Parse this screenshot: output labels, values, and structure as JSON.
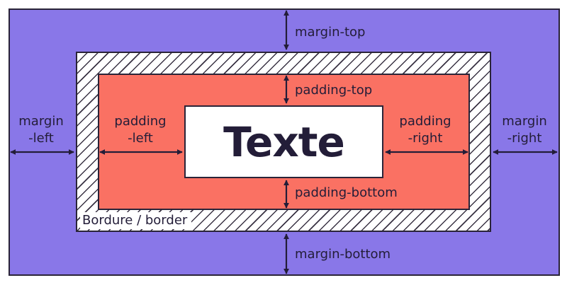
{
  "content_label": "Texte",
  "border_label": "Bordure / border",
  "labels": {
    "margin_top": "margin-top",
    "margin_bottom": "margin-bottom",
    "margin_left_line1": "margin",
    "margin_left_line2": "-left",
    "margin_right_line1": "margin",
    "margin_right_line2": "-right",
    "padding_top": "padding-top",
    "padding_bottom": "padding-bottom",
    "padding_left_line1": "padding",
    "padding_left_line2": "-left",
    "padding_right_line1": "padding",
    "padding_right_line2": "-right"
  },
  "colors": {
    "margin": "#8977e8",
    "border_hatch": "#3a3344",
    "padding": "#fa7163",
    "content": "#ffffff",
    "ink": "#231d38"
  }
}
